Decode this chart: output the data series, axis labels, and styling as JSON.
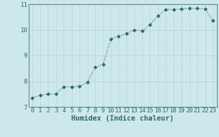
{
  "x": [
    0,
    1,
    2,
    3,
    4,
    5,
    6,
    7,
    8,
    9,
    10,
    11,
    12,
    13,
    14,
    15,
    16,
    17,
    18,
    19,
    20,
    21,
    22,
    23
  ],
  "y": [
    7.35,
    7.45,
    7.5,
    7.5,
    7.78,
    7.78,
    7.8,
    7.95,
    8.55,
    8.65,
    9.65,
    9.75,
    9.85,
    10.0,
    9.95,
    10.2,
    10.55,
    10.8,
    10.78,
    10.82,
    10.83,
    10.83,
    10.82,
    10.35
  ],
  "xlabel": "Humidex (Indice chaleur)",
  "ylim": [
    7.0,
    11.0
  ],
  "xlim": [
    -0.5,
    23.5
  ],
  "line_color": "#2e6b5e",
  "marker": "D",
  "marker_size": 2.5,
  "bg_color": "#cde8eb",
  "grid_color": "#b8d8da",
  "yticks": [
    7,
    8,
    9,
    10,
    11
  ],
  "xticks": [
    0,
    1,
    2,
    3,
    4,
    5,
    6,
    7,
    8,
    9,
    10,
    11,
    12,
    13,
    14,
    15,
    16,
    17,
    18,
    19,
    20,
    21,
    22,
    23
  ],
  "xlabel_fontsize": 7.5,
  "tick_fontsize": 6.5
}
